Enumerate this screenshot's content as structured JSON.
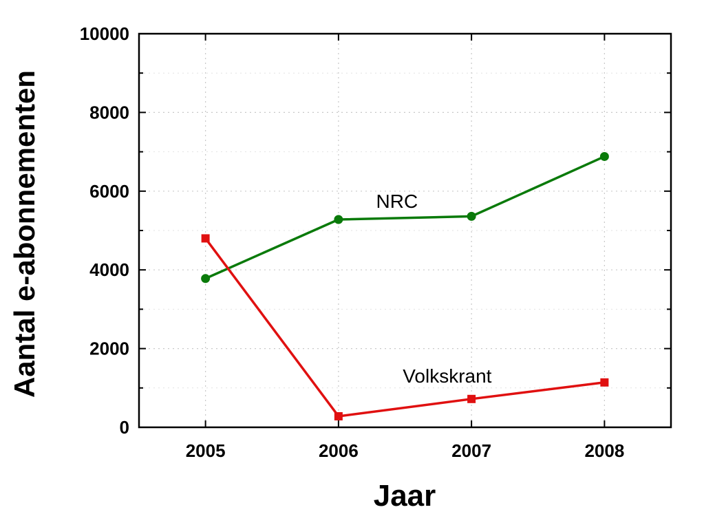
{
  "chart_data": {
    "type": "line",
    "title": "",
    "xlabel": "Jaar",
    "ylabel": "Aantal e-abonnementen",
    "x": [
      2005,
      2006,
      2007,
      2008
    ],
    "x_tick_labels": [
      "2005",
      "2006",
      "2007",
      "2008"
    ],
    "xlim": [
      2004.5,
      2008.5
    ],
    "ylim": [
      0,
      10000
    ],
    "y_tick_labels": [
      "0",
      "2000",
      "4000",
      "6000",
      "8000",
      "10000"
    ],
    "grid": true,
    "legend": "none",
    "series": [
      {
        "name": "NRC",
        "values": [
          3780,
          5280,
          5360,
          6880
        ],
        "color": "#0a7a0a",
        "marker": "circle"
      },
      {
        "name": "Volkskrant",
        "values": [
          4800,
          280,
          720,
          1140
        ],
        "color": "#e01010",
        "marker": "square"
      }
    ]
  }
}
